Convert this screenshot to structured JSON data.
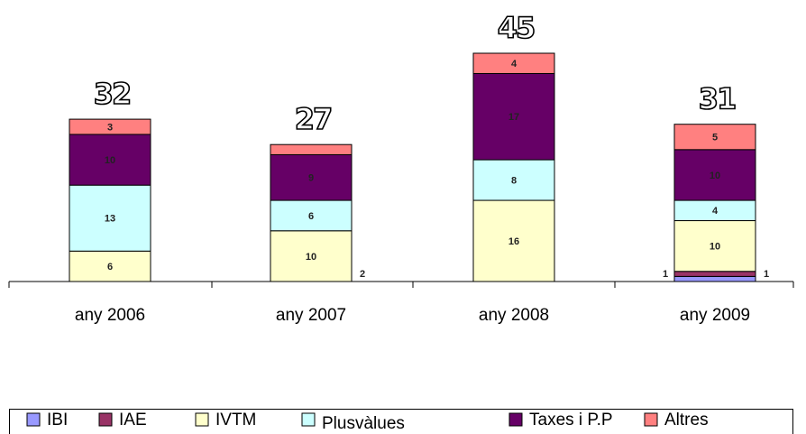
{
  "chart_data": {
    "type": "stacked_bar",
    "categories": [
      "any 2006",
      "any 2007",
      "any 2008",
      "any 2009"
    ],
    "totals": [
      32,
      27,
      45,
      31
    ],
    "series": [
      {
        "name": "IBI",
        "color": "#9999ff",
        "values": [
          0,
          0,
          0,
          1
        ]
      },
      {
        "name": "IAE",
        "color": "#993366",
        "values": [
          0,
          0,
          0,
          1
        ]
      },
      {
        "name": "IVTM",
        "color": "#ffffcc",
        "values": [
          6,
          10,
          16,
          10
        ]
      },
      {
        "name": "Plusvàlues",
        "color": "#ccffff",
        "values": [
          13,
          6,
          8,
          4
        ]
      },
      {
        "name": "Taxes i P.P",
        "color": "#660066",
        "values": [
          10,
          9,
          17,
          10
        ]
      },
      {
        "name": "Altres",
        "color": "#ff8080",
        "values": [
          3,
          2,
          4,
          5
        ]
      }
    ],
    "legend": "bottom"
  }
}
